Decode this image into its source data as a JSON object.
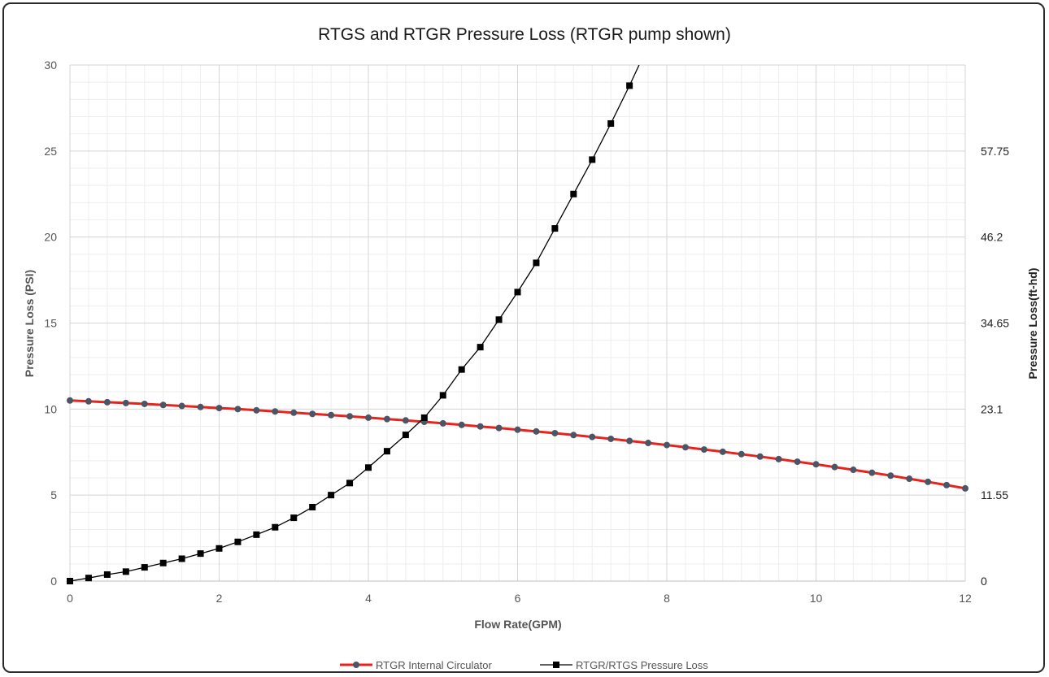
{
  "chart_data": {
    "type": "line",
    "title": "RTGS and RTGR Pressure Loss (RTGR pump shown)",
    "xlabel": "Flow Rate(GPM)",
    "ylabel": "Pressure Loss (PSI)",
    "y2label": "Pressure Loss(ft-hd)",
    "xlim": [
      0,
      12
    ],
    "ylim": [
      0,
      30
    ],
    "x_ticks": [
      "0",
      "2",
      "4",
      "6",
      "8",
      "10",
      "12"
    ],
    "y_ticks": [
      "0",
      "5",
      "10",
      "15",
      "20",
      "25",
      "30"
    ],
    "y2_ticks": [
      "0",
      "11.55",
      "23.1",
      "34.65",
      "46.2",
      "57.75"
    ],
    "grid": true,
    "legend_position": "bottom",
    "series": [
      {
        "name": "RTGR Internal Circulator",
        "color": "#e8231c",
        "marker_color": "#4a5566",
        "marker": "circle",
        "x": [
          0,
          0.25,
          0.5,
          0.75,
          1,
          1.25,
          1.5,
          1.75,
          2,
          2.25,
          2.5,
          2.75,
          3,
          3.25,
          3.5,
          3.75,
          4,
          4.25,
          4.5,
          4.75,
          5,
          5.25,
          5.5,
          5.75,
          6,
          6.25,
          6.5,
          6.75,
          7,
          7.25,
          7.5,
          7.75,
          8,
          8.25,
          8.5,
          8.75,
          9,
          9.25,
          9.5,
          9.75,
          10,
          10.25,
          10.5,
          10.75,
          11,
          11.25,
          11.5,
          11.75,
          12
        ],
        "y": [
          10.5,
          10.45,
          10.4,
          10.35,
          10.3,
          10.24,
          10.18,
          10.12,
          10.06,
          10.0,
          9.93,
          9.86,
          9.79,
          9.72,
          9.65,
          9.58,
          9.5,
          9.42,
          9.34,
          9.26,
          9.17,
          9.08,
          8.99,
          8.9,
          8.8,
          8.7,
          8.6,
          8.49,
          8.38,
          8.27,
          8.15,
          8.03,
          7.91,
          7.78,
          7.65,
          7.52,
          7.38,
          7.24,
          7.09,
          6.94,
          6.79,
          6.63,
          6.47,
          6.3,
          6.13,
          5.95,
          5.77,
          5.58,
          5.39
        ]
      },
      {
        "name": "RTGR/RTGS Pressure Loss",
        "color": "#000000",
        "marker_color": "#000000",
        "marker": "square",
        "x": [
          0,
          0.25,
          0.5,
          0.75,
          1,
          1.25,
          1.5,
          1.75,
          2,
          2.25,
          2.5,
          2.75,
          3,
          3.25,
          3.5,
          3.75,
          4,
          4.25,
          4.5,
          4.75,
          5,
          5.25,
          5.5,
          5.75,
          6,
          6.25,
          6.5,
          6.75,
          7,
          7.25,
          7.5
        ],
        "y": [
          0.0,
          0.18,
          0.38,
          0.55,
          0.8,
          1.05,
          1.3,
          1.6,
          1.9,
          2.28,
          2.7,
          3.13,
          3.68,
          4.3,
          5.0,
          5.7,
          6.6,
          7.55,
          8.5,
          9.5,
          10.8,
          12.3,
          13.6,
          15.2,
          16.8,
          18.5,
          20.5,
          22.5,
          24.5,
          26.6,
          28.8
        ]
      }
    ]
  }
}
